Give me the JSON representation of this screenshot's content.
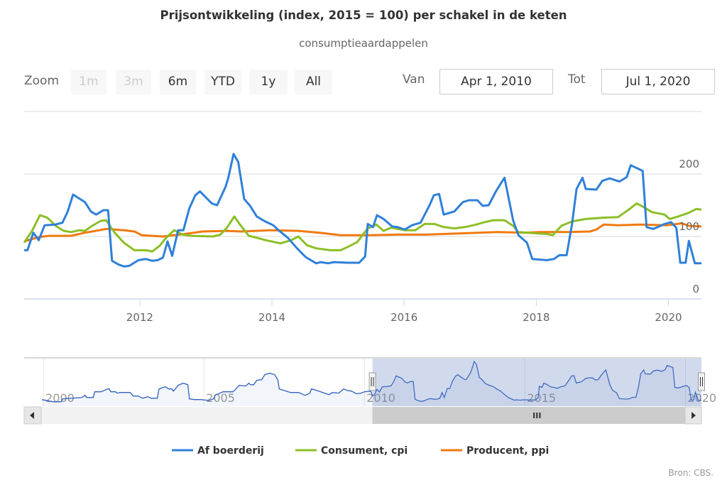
{
  "title": "Prijsontwikkeling (index, 2015 = 100) per schakel in de keten",
  "subtitle": "consumptieaardappelen",
  "range_selector": {
    "zoom_label": "Zoom",
    "buttons": [
      {
        "label": "1m",
        "enabled": false
      },
      {
        "label": "3m",
        "enabled": false
      },
      {
        "label": "6m",
        "enabled": true
      },
      {
        "label": "YTD",
        "enabled": true
      },
      {
        "label": "1y",
        "enabled": true
      },
      {
        "label": "All",
        "enabled": true
      }
    ],
    "from_label": "Van",
    "from_value": "Apr 1, 2010",
    "to_label": "Tot",
    "to_value": "Jul 1, 2020"
  },
  "credits": "Bron: CBS.",
  "colors": {
    "blue": "#2f80d8",
    "green": "#8cbf26",
    "orange": "#f07a10"
  },
  "chart_data": {
    "type": "line",
    "title": "Prijsontwikkeling (index, 2015 = 100) per schakel in de keten",
    "subtitle": "consumptieaardappelen",
    "xlabel": "",
    "ylabel": "",
    "xlim": [
      2010.25,
      2020.5
    ],
    "ylim": [
      0,
      300
    ],
    "x_ticks": [
      "2012",
      "2014",
      "2016",
      "2018",
      "2020"
    ],
    "y_ticks": [
      "0",
      "100",
      "200"
    ],
    "grid": true,
    "legend": "bottom-center",
    "series": [
      {
        "name": "Af boerderij",
        "color": "#2f80d8",
        "points": [
          [
            2010.25,
            78
          ],
          [
            2010.3,
            78
          ],
          [
            2010.39,
            106
          ],
          [
            2010.47,
            94
          ],
          [
            2010.56,
            118
          ],
          [
            2010.72,
            119
          ],
          [
            2010.83,
            122
          ],
          [
            2010.91,
            140
          ],
          [
            2010.99,
            167
          ],
          [
            2011.17,
            155
          ],
          [
            2011.26,
            140
          ],
          [
            2011.34,
            135
          ],
          [
            2011.45,
            142
          ],
          [
            2011.52,
            142
          ],
          [
            2011.58,
            61
          ],
          [
            2011.68,
            55
          ],
          [
            2011.76,
            52
          ],
          [
            2011.84,
            53
          ],
          [
            2011.98,
            62
          ],
          [
            2012.09,
            64
          ],
          [
            2012.19,
            61
          ],
          [
            2012.27,
            62
          ],
          [
            2012.35,
            66
          ],
          [
            2012.42,
            92
          ],
          [
            2012.49,
            69
          ],
          [
            2012.58,
            110
          ],
          [
            2012.66,
            110
          ],
          [
            2012.75,
            145
          ],
          [
            2012.84,
            166
          ],
          [
            2012.91,
            172
          ],
          [
            2013.09,
            153
          ],
          [
            2013.17,
            150
          ],
          [
            2013.3,
            180
          ],
          [
            2013.34,
            194
          ],
          [
            2013.42,
            232
          ],
          [
            2013.49,
            219
          ],
          [
            2013.58,
            160
          ],
          [
            2013.67,
            149
          ],
          [
            2013.77,
            132
          ],
          [
            2013.88,
            125
          ],
          [
            2014.02,
            118
          ],
          [
            2014.11,
            109
          ],
          [
            2014.24,
            98
          ],
          [
            2014.38,
            81
          ],
          [
            2014.51,
            67
          ],
          [
            2014.67,
            57
          ],
          [
            2014.74,
            59
          ],
          [
            2014.85,
            57
          ],
          [
            2014.94,
            59
          ],
          [
            2015.15,
            58
          ],
          [
            2015.32,
            58
          ],
          [
            2015.41,
            68
          ],
          [
            2015.45,
            120
          ],
          [
            2015.53,
            115
          ],
          [
            2015.59,
            134
          ],
          [
            2015.69,
            128
          ],
          [
            2015.82,
            116
          ],
          [
            2015.9,
            115
          ],
          [
            2016.01,
            111
          ],
          [
            2016.12,
            118
          ],
          [
            2016.25,
            122
          ],
          [
            2016.39,
            151
          ],
          [
            2016.45,
            166
          ],
          [
            2016.53,
            168
          ],
          [
            2016.6,
            135
          ],
          [
            2016.76,
            140
          ],
          [
            2016.89,
            155
          ],
          [
            2016.98,
            158
          ],
          [
            2017.11,
            158
          ],
          [
            2017.19,
            149
          ],
          [
            2017.28,
            150
          ],
          [
            2017.39,
            172
          ],
          [
            2017.47,
            186
          ],
          [
            2017.52,
            194
          ],
          [
            2017.65,
            126
          ],
          [
            2017.73,
            102
          ],
          [
            2017.86,
            90
          ],
          [
            2017.94,
            64
          ],
          [
            2018.16,
            62
          ],
          [
            2018.27,
            64
          ],
          [
            2018.35,
            70
          ],
          [
            2018.46,
            70
          ],
          [
            2018.54,
            119
          ],
          [
            2018.61,
            176
          ],
          [
            2018.7,
            194
          ],
          [
            2018.75,
            176
          ],
          [
            2018.91,
            175
          ],
          [
            2019.0,
            189
          ],
          [
            2019.11,
            193
          ],
          [
            2019.26,
            188
          ],
          [
            2019.37,
            195
          ],
          [
            2019.43,
            214
          ],
          [
            2019.61,
            205
          ],
          [
            2019.67,
            115
          ],
          [
            2019.77,
            112
          ],
          [
            2019.86,
            116
          ],
          [
            2019.94,
            120
          ],
          [
            2020.04,
            123
          ],
          [
            2020.12,
            114
          ],
          [
            2020.18,
            58
          ],
          [
            2020.26,
            58
          ],
          [
            2020.31,
            93
          ],
          [
            2020.4,
            57
          ],
          [
            2020.5,
            57
          ]
        ]
      },
      {
        "name": "Consument, cpi",
        "color": "#8cbf26",
        "points": [
          [
            2010.25,
            90
          ],
          [
            2010.37,
            109
          ],
          [
            2010.49,
            134
          ],
          [
            2010.6,
            130
          ],
          [
            2010.74,
            116
          ],
          [
            2010.85,
            109
          ],
          [
            2010.96,
            107
          ],
          [
            2011.09,
            110
          ],
          [
            2011.17,
            109
          ],
          [
            2011.28,
            117
          ],
          [
            2011.41,
            125
          ],
          [
            2011.49,
            126
          ],
          [
            2011.62,
            106
          ],
          [
            2011.76,
            90
          ],
          [
            2011.92,
            78
          ],
          [
            2012.09,
            78
          ],
          [
            2012.19,
            76
          ],
          [
            2012.3,
            85
          ],
          [
            2012.41,
            99
          ],
          [
            2012.52,
            110
          ],
          [
            2012.65,
            103
          ],
          [
            2012.78,
            101
          ],
          [
            2013.11,
            100
          ],
          [
            2013.22,
            103
          ],
          [
            2013.32,
            114
          ],
          [
            2013.43,
            132
          ],
          [
            2013.51,
            120
          ],
          [
            2013.65,
            101
          ],
          [
            2013.77,
            98
          ],
          [
            2013.91,
            94
          ],
          [
            2014.13,
            89
          ],
          [
            2014.29,
            94
          ],
          [
            2014.4,
            100
          ],
          [
            2014.53,
            86
          ],
          [
            2014.67,
            81
          ],
          [
            2014.88,
            78
          ],
          [
            2015.04,
            78
          ],
          [
            2015.18,
            85
          ],
          [
            2015.29,
            91
          ],
          [
            2015.45,
            113
          ],
          [
            2015.58,
            119
          ],
          [
            2015.69,
            109
          ],
          [
            2015.8,
            114
          ],
          [
            2016.01,
            110
          ],
          [
            2016.17,
            110
          ],
          [
            2016.31,
            120
          ],
          [
            2016.46,
            120
          ],
          [
            2016.6,
            115
          ],
          [
            2016.76,
            113
          ],
          [
            2016.92,
            115
          ],
          [
            2017.09,
            119
          ],
          [
            2017.19,
            122
          ],
          [
            2017.35,
            126
          ],
          [
            2017.52,
            126
          ],
          [
            2017.65,
            117
          ],
          [
            2017.73,
            107
          ],
          [
            2018.0,
            105
          ],
          [
            2018.16,
            104
          ],
          [
            2018.25,
            102
          ],
          [
            2018.38,
            117
          ],
          [
            2018.54,
            124
          ],
          [
            2018.75,
            128
          ],
          [
            2019.0,
            130
          ],
          [
            2019.24,
            131
          ],
          [
            2019.4,
            143
          ],
          [
            2019.52,
            153
          ],
          [
            2019.61,
            148
          ],
          [
            2019.75,
            139
          ],
          [
            2019.94,
            135
          ],
          [
            2020.02,
            128
          ],
          [
            2020.15,
            132
          ],
          [
            2020.31,
            138
          ],
          [
            2020.42,
            144
          ],
          [
            2020.5,
            143
          ]
        ]
      },
      {
        "name": "Producent, ppi",
        "color": "#f07a10",
        "points": [
          [
            2010.25,
            92
          ],
          [
            2010.47,
            99
          ],
          [
            2010.63,
            101
          ],
          [
            2010.96,
            101
          ],
          [
            2011.17,
            106
          ],
          [
            2011.39,
            110
          ],
          [
            2011.49,
            112
          ],
          [
            2011.76,
            110
          ],
          [
            2011.92,
            108
          ],
          [
            2012.03,
            102
          ],
          [
            2012.19,
            101
          ],
          [
            2012.35,
            100
          ],
          [
            2012.68,
            104
          ],
          [
            2012.95,
            108
          ],
          [
            2013.32,
            109
          ],
          [
            2013.54,
            108
          ],
          [
            2013.97,
            110
          ],
          [
            2014.4,
            109
          ],
          [
            2014.72,
            106
          ],
          [
            2015.04,
            102
          ],
          [
            2015.47,
            102
          ],
          [
            2015.9,
            103
          ],
          [
            2016.33,
            103
          ],
          [
            2016.87,
            105
          ],
          [
            2017.41,
            107
          ],
          [
            2017.84,
            106
          ],
          [
            2018.05,
            107
          ],
          [
            2018.48,
            107
          ],
          [
            2018.81,
            108
          ],
          [
            2018.91,
            111
          ],
          [
            2019.02,
            119
          ],
          [
            2019.24,
            118
          ],
          [
            2019.56,
            119
          ],
          [
            2019.99,
            118
          ],
          [
            2020.2,
            121
          ],
          [
            2020.31,
            117
          ],
          [
            2020.5,
            116
          ]
        ]
      }
    ],
    "navigator": {
      "xlim": [
        1999.4,
        2020.5
      ],
      "ylim": [
        30,
        245
      ],
      "x_ticks": [
        "2000",
        "2005",
        "2010",
        "2015",
        "2020"
      ],
      "selected_range": [
        2010.25,
        2020.5
      ],
      "early_points": [
        [
          1999.95,
          60
        ],
        [
          2000.3,
          50
        ],
        [
          2000.55,
          50
        ],
        [
          2000.6,
          63
        ],
        [
          2001.2,
          69
        ],
        [
          2001.3,
          79
        ],
        [
          2001.35,
          69
        ],
        [
          2001.55,
          69
        ],
        [
          2001.6,
          95
        ],
        [
          2001.8,
          95
        ],
        [
          2002.0,
          108
        ],
        [
          2002.05,
          108
        ],
        [
          2002.1,
          95
        ],
        [
          2002.25,
          95
        ],
        [
          2002.3,
          89
        ],
        [
          2002.4,
          92
        ],
        [
          2002.7,
          92
        ],
        [
          2002.8,
          76
        ],
        [
          2002.95,
          76
        ],
        [
          2003.1,
          66
        ],
        [
          2003.25,
          73
        ],
        [
          2003.35,
          66
        ],
        [
          2003.55,
          66
        ],
        [
          2003.6,
          108
        ],
        [
          2003.8,
          118
        ],
        [
          2003.9,
          108
        ],
        [
          2004.0,
          108
        ],
        [
          2004.05,
          98
        ],
        [
          2004.2,
          124
        ],
        [
          2004.35,
          134
        ],
        [
          2004.5,
          127
        ],
        [
          2004.55,
          63
        ],
        [
          2004.7,
          60
        ],
        [
          2004.9,
          60
        ],
        [
          2005.15,
          56
        ],
        [
          2005.3,
          63
        ],
        [
          2005.35,
          79
        ],
        [
          2005.6,
          95
        ],
        [
          2005.9,
          95
        ],
        [
          2006.0,
          108
        ],
        [
          2006.1,
          124
        ],
        [
          2006.3,
          121
        ],
        [
          2006.4,
          134
        ],
        [
          2006.45,
          127
        ],
        [
          2006.55,
          127
        ],
        [
          2006.65,
          147
        ],
        [
          2006.8,
          150
        ],
        [
          2006.9,
          173
        ],
        [
          2007.05,
          179
        ],
        [
          2007.2,
          173
        ],
        [
          2007.3,
          150
        ],
        [
          2007.35,
          108
        ],
        [
          2007.7,
          92
        ],
        [
          2007.95,
          92
        ],
        [
          2008.15,
          79
        ],
        [
          2008.3,
          89
        ],
        [
          2008.35,
          108
        ],
        [
          2008.5,
          102
        ],
        [
          2008.9,
          82
        ],
        [
          2009.0,
          92
        ],
        [
          2009.2,
          89
        ],
        [
          2009.35,
          108
        ],
        [
          2009.45,
          102
        ],
        [
          2009.6,
          98
        ],
        [
          2009.75,
          86
        ],
        [
          2009.9,
          89
        ],
        [
          2010.0,
          95
        ],
        [
          2010.2,
          98
        ]
      ]
    },
    "scrollbar_grip": "III"
  }
}
